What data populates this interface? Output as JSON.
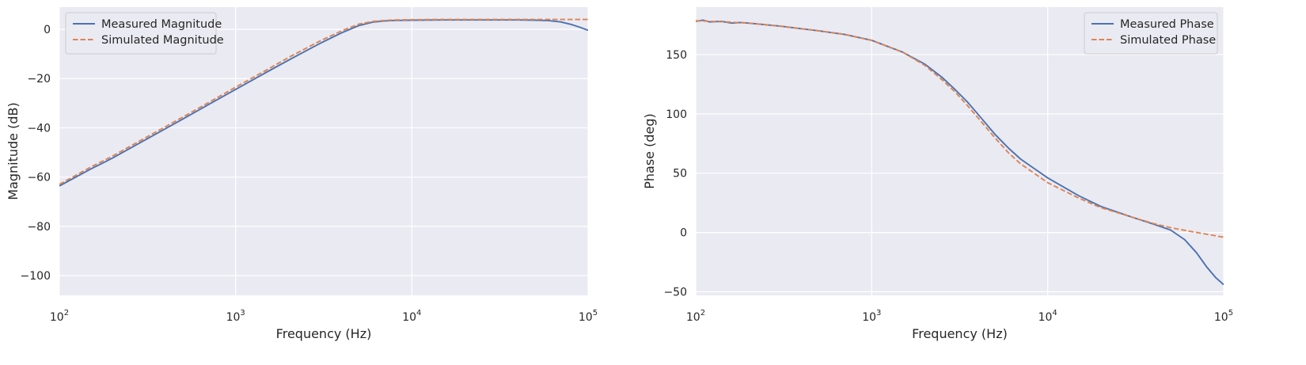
{
  "colors": {
    "background": "#EAEAF2",
    "grid": "#FFFFFF",
    "measured": "#4C72B0",
    "simulated": "#DD8452",
    "text": "#262626"
  },
  "chart_data": [
    {
      "type": "line",
      "title": "",
      "xlabel": "Frequency (Hz)",
      "ylabel": "Magnitude (dB)",
      "xscale": "log",
      "xlim": [
        100,
        100000
      ],
      "ylim": [
        -108,
        9
      ],
      "xticks": [
        100,
        1000,
        10000,
        100000
      ],
      "xtick_labels": [
        {
          "base": "10",
          "exp": "2"
        },
        {
          "base": "10",
          "exp": "3"
        },
        {
          "base": "10",
          "exp": "4"
        },
        {
          "base": "10",
          "exp": "5"
        }
      ],
      "yticks": [
        0,
        -20,
        -40,
        -60,
        -80,
        -100
      ],
      "ytick_labels": [
        "0",
        "−20",
        "−40",
        "−60",
        "−80",
        "−100"
      ],
      "grid": true,
      "legend": "top-left",
      "series": [
        {
          "name": "Measured Magnitude",
          "style": "solid",
          "x": [
            100,
            150,
            200,
            300,
            500,
            700,
            1000,
            1500,
            2000,
            3000,
            4000,
            5000,
            6000,
            7000,
            8000,
            10000,
            15000,
            20000,
            30000,
            40000,
            50000,
            60000,
            70000,
            80000,
            90000,
            100000
          ],
          "y": [
            -63.6,
            -56.8,
            -52.3,
            -45.3,
            -36.5,
            -30.6,
            -24.4,
            -17.4,
            -12.5,
            -5.8,
            -1.4,
            1.5,
            2.9,
            3.4,
            3.6,
            3.7,
            3.8,
            3.8,
            3.8,
            3.8,
            3.7,
            3.5,
            3.0,
            2.0,
            0.8,
            -0.4
          ]
        },
        {
          "name": "Simulated Magnitude",
          "style": "dashed",
          "x": [
            100,
            150,
            200,
            300,
            500,
            700,
            1000,
            1500,
            2000,
            3000,
            4000,
            5000,
            6000,
            7000,
            8000,
            10000,
            15000,
            20000,
            30000,
            50000,
            100000
          ],
          "y": [
            -63.0,
            -56.0,
            -51.5,
            -44.5,
            -35.7,
            -29.8,
            -23.5,
            -16.5,
            -11.4,
            -4.8,
            -0.6,
            2.1,
            3.2,
            3.6,
            3.8,
            3.9,
            4.0,
            4.0,
            4.0,
            4.0,
            4.0
          ]
        }
      ]
    },
    {
      "type": "line",
      "title": "",
      "xlabel": "Frequency (Hz)",
      "ylabel": "Phase (deg)",
      "xscale": "log",
      "xlim": [
        100,
        100000
      ],
      "ylim": [
        -53,
        190
      ],
      "xticks": [
        100,
        1000,
        10000,
        100000
      ],
      "xtick_labels": [
        {
          "base": "10",
          "exp": "2"
        },
        {
          "base": "10",
          "exp": "3"
        },
        {
          "base": "10",
          "exp": "4"
        },
        {
          "base": "10",
          "exp": "5"
        }
      ],
      "yticks": [
        150,
        100,
        50,
        0,
        -50
      ],
      "ytick_labels": [
        "150",
        "100",
        "50",
        "0",
        "−50"
      ],
      "grid": true,
      "legend": "top-right",
      "series": [
        {
          "name": "Measured Phase",
          "style": "solid",
          "x": [
            100,
            110,
            120,
            140,
            160,
            180,
            200,
            300,
            500,
            700,
            1000,
            1500,
            2000,
            2500,
            3000,
            3500,
            4000,
            5000,
            6000,
            7000,
            8000,
            10000,
            15000,
            20000,
            30000,
            40000,
            50000,
            60000,
            70000,
            80000,
            90000,
            100000
          ],
          "y": [
            178,
            179,
            177.5,
            178,
            176.5,
            177,
            176.5,
            174,
            170,
            167,
            162,
            152,
            142,
            131,
            120,
            110,
            100,
            83,
            71,
            62,
            56,
            46,
            31,
            22,
            13,
            7,
            2,
            -6,
            -17,
            -29,
            -38,
            -44
          ]
        },
        {
          "name": "Simulated Phase",
          "style": "dashed",
          "x": [
            100,
            150,
            200,
            300,
            500,
            700,
            1000,
            1500,
            2000,
            2500,
            3000,
            3500,
            4000,
            5000,
            6000,
            7000,
            8000,
            10000,
            15000,
            20000,
            30000,
            40000,
            50000,
            70000,
            100000
          ],
          "y": [
            178.5,
            177.5,
            176.5,
            174,
            170,
            167,
            162,
            152,
            141,
            129,
            118,
            107,
            97,
            80,
            67,
            58,
            52,
            42,
            29,
            21,
            13,
            7.5,
            4,
            0,
            -4
          ]
        }
      ]
    }
  ]
}
